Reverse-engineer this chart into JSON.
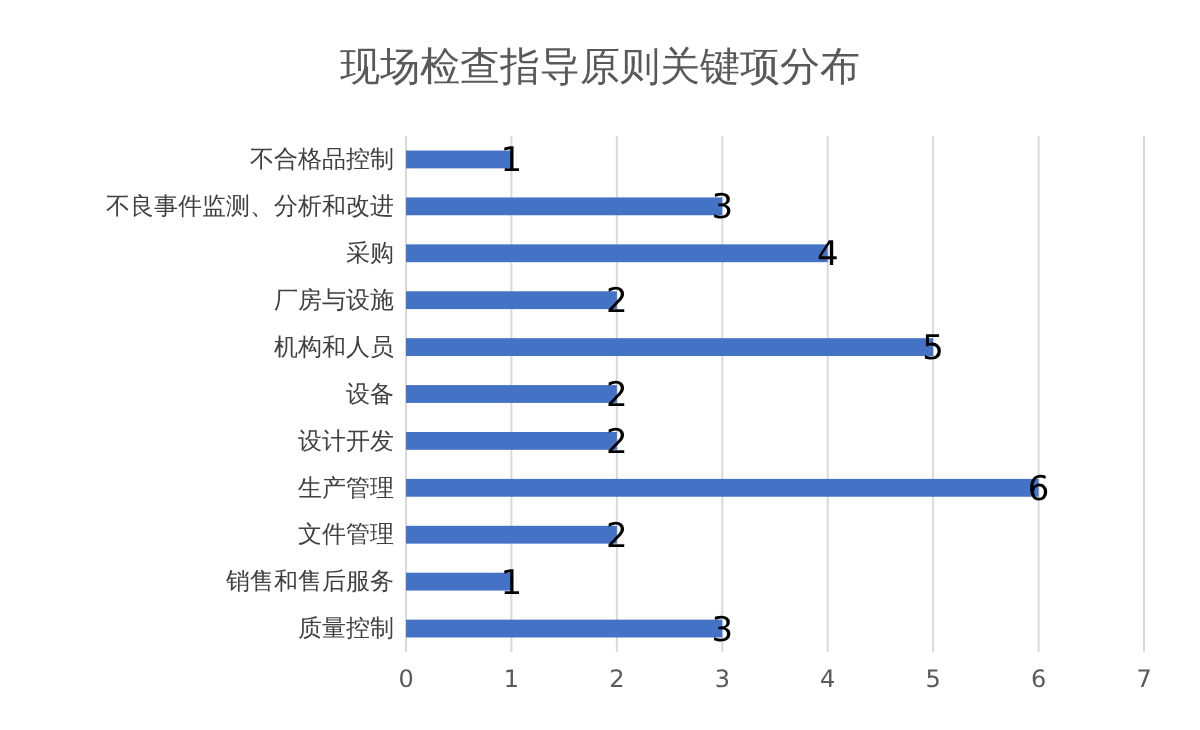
{
  "chart_data": {
    "type": "bar",
    "orientation": "horizontal",
    "title": "现场检查指导原则关键项分布",
    "categories": [
      "不合格品控制",
      "不良事件监测、分析和改进",
      "采购",
      "厂房与设施",
      "机构和人员",
      "设备",
      "设计开发",
      "生产管理",
      "文件管理",
      "销售和售后服务",
      "质量控制"
    ],
    "values": [
      1,
      3,
      4,
      2,
      5,
      2,
      2,
      6,
      2,
      1,
      3
    ],
    "color": "#4472c4",
    "xlim": [
      0,
      7
    ],
    "xticks": [
      0,
      1,
      2,
      3,
      4,
      5,
      6,
      7
    ],
    "grid": "x",
    "data_labels": true
  }
}
